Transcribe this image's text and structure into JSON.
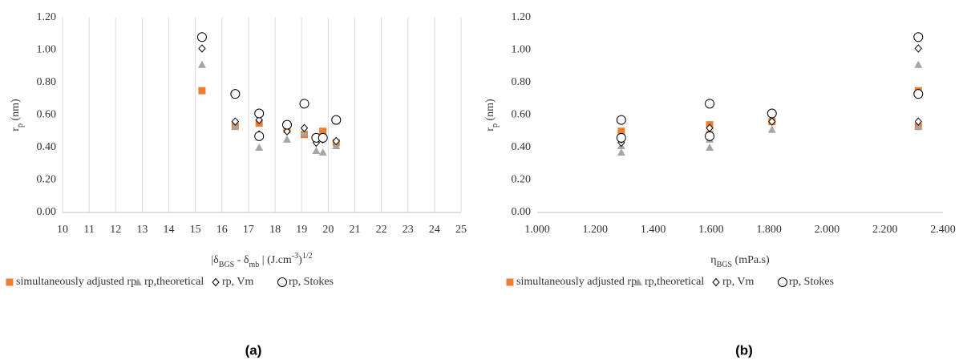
{
  "chart_data": [
    {
      "type": "scatter",
      "caption": "(a)",
      "x_label_parts": [
        "|δ",
        "BGS",
        " - δ",
        "mb",
        "  |  (J.cm",
        "-3",
        ")",
        "1/2"
      ],
      "y_label_parts": [
        "r",
        "p",
        " (nm)"
      ],
      "xlim": [
        10,
        25
      ],
      "xticks": [
        10,
        11,
        12,
        13,
        14,
        15,
        16,
        17,
        18,
        19,
        20,
        21,
        22,
        23,
        24,
        25
      ],
      "ylim": [
        0,
        1.2
      ],
      "yticks": [
        {
          "value": 0,
          "label": "0.00"
        },
        {
          "value": 0.2,
          "label": "0.20"
        },
        {
          "value": 0.4,
          "label": "0.40"
        },
        {
          "value": 0.6,
          "label": "0.60"
        },
        {
          "value": 0.8,
          "label": "0.80"
        },
        {
          "value": 1.0,
          "label": "1.00"
        },
        {
          "value": 1.2,
          "label": "1.20"
        }
      ],
      "grid": "x",
      "series": [
        {
          "name": "simultaneously adjusted rp",
          "color": "#ED7D31",
          "marker": "square",
          "x": [
            15.25,
            16.5,
            17.4,
            18.45,
            19.1,
            19.55,
            19.8,
            20.3
          ],
          "values": [
            0.75,
            0.53,
            0.55,
            0.51,
            0.48,
            0.46,
            0.5,
            0.43
          ]
        },
        {
          "name": "rp,theoretical",
          "color": "#A5A5A5",
          "marker": "triangle",
          "x": [
            15.25,
            16.5,
            17.4,
            17.4,
            18.45,
            19.1,
            19.55,
            19.8,
            20.3
          ],
          "values": [
            0.91,
            0.53,
            0.4,
            0.48,
            0.45,
            0.49,
            0.38,
            0.37,
            0.41
          ]
        },
        {
          "name": "rp, Vm",
          "color": "#000000",
          "marker": "diamond",
          "x": [
            15.25,
            16.5,
            17.4,
            17.4,
            18.45,
            19.1,
            19.55,
            19.8,
            20.3
          ],
          "values": [
            1.01,
            0.56,
            0.57,
            0.48,
            0.5,
            0.52,
            0.43,
            0.45,
            0.44
          ]
        },
        {
          "name": "rp, Stokes",
          "color": "#000000",
          "marker": "circle",
          "x": [
            15.25,
            16.5,
            17.4,
            17.4,
            18.45,
            19.1,
            19.55,
            19.8,
            20.3
          ],
          "values": [
            1.08,
            0.73,
            0.61,
            0.47,
            0.54,
            0.67,
            0.46,
            0.46,
            0.57
          ]
        }
      ]
    },
    {
      "type": "scatter",
      "caption": "(b)",
      "x_label_parts": [
        "η",
        "BGS",
        " (mPa.s)"
      ],
      "y_label_parts": [
        "r",
        "p",
        " (nm)"
      ],
      "xlim": [
        1.0,
        2.4
      ],
      "xticks": [
        {
          "value": 1.0,
          "label": "1.000"
        },
        {
          "value": 1.2,
          "label": "1.200"
        },
        {
          "value": 1.4,
          "label": "1.400"
        },
        {
          "value": 1.6,
          "label": "1.600"
        },
        {
          "value": 1.8,
          "label": "1.800"
        },
        {
          "value": 2.0,
          "label": "2.000"
        },
        {
          "value": 2.2,
          "label": "2.200"
        },
        {
          "value": 2.4,
          "label": "2.400"
        }
      ],
      "ylim": [
        0,
        1.2
      ],
      "yticks": [
        {
          "value": 0,
          "label": "0.00"
        },
        {
          "value": 0.2,
          "label": "0.20"
        },
        {
          "value": 0.4,
          "label": "0.40"
        },
        {
          "value": 0.6,
          "label": "0.60"
        },
        {
          "value": 0.8,
          "label": "0.80"
        },
        {
          "value": 1.0,
          "label": "1.00"
        },
        {
          "value": 1.2,
          "label": "1.20"
        }
      ],
      "grid": "none",
      "series": [
        {
          "name": "simultaneously adjusted rp",
          "color": "#ED7D31",
          "marker": "square",
          "x": [
            1.29,
            1.29,
            1.595,
            1.595,
            1.81,
            2.315,
            2.315
          ],
          "values": [
            0.5,
            0.46,
            0.54,
            0.48,
            0.56,
            0.75,
            0.53
          ]
        },
        {
          "name": "rp,theoretical",
          "color": "#A5A5A5",
          "marker": "triangle",
          "x": [
            1.29,
            1.29,
            1.595,
            1.595,
            1.81,
            2.315,
            2.315
          ],
          "values": [
            0.37,
            0.41,
            0.4,
            0.45,
            0.51,
            0.91,
            0.53
          ]
        },
        {
          "name": "rp, Vm",
          "color": "#000000",
          "marker": "diamond",
          "x": [
            1.29,
            1.29,
            1.595,
            1.595,
            1.81,
            2.315,
            2.315
          ],
          "values": [
            0.43,
            0.45,
            0.52,
            0.48,
            0.56,
            1.01,
            0.56
          ]
        },
        {
          "name": "rp, Stokes",
          "color": "#000000",
          "marker": "circle",
          "x": [
            1.29,
            1.29,
            1.595,
            1.595,
            1.81,
            2.315,
            2.315
          ],
          "values": [
            0.57,
            0.46,
            0.67,
            0.47,
            0.61,
            1.08,
            0.73
          ]
        }
      ]
    }
  ]
}
